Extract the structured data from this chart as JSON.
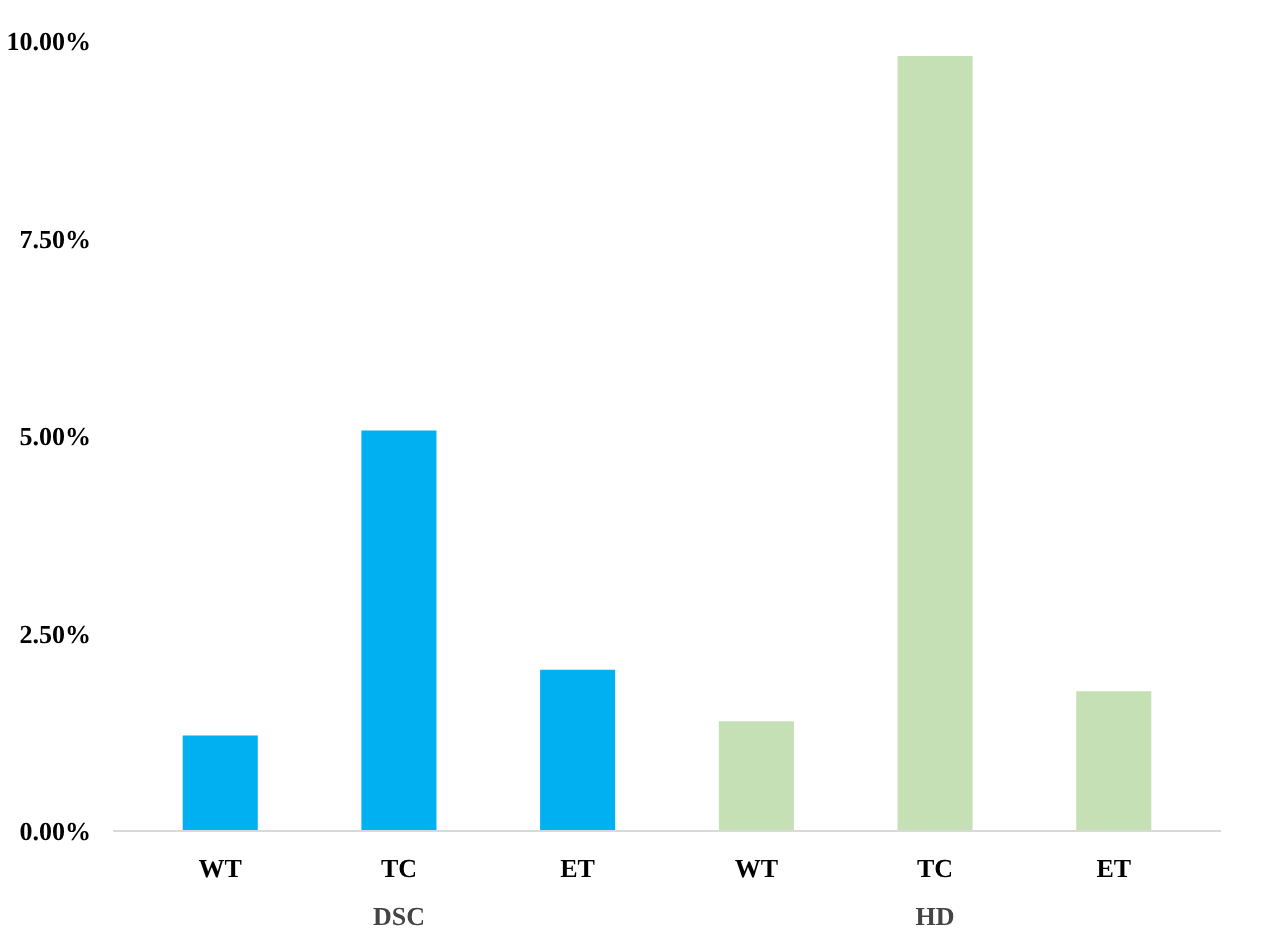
{
  "chart_data": {
    "type": "bar",
    "categories": [
      "WT",
      "TC",
      "ET",
      "WT",
      "TC",
      "ET"
    ],
    "series": [
      {
        "name": "DSC",
        "color": "#00b0f0",
        "values": [
          1.21,
          5.07,
          2.04,
          null,
          null,
          null
        ]
      },
      {
        "name": "HD",
        "color": "#c5e0b4",
        "values": [
          null,
          null,
          null,
          1.39,
          9.81,
          1.77
        ]
      }
    ],
    "ylim": [
      0,
      10
    ],
    "yticks": [
      {
        "value": 0,
        "label": "0.00%"
      },
      {
        "value": 2.5,
        "label": "2.50%"
      },
      {
        "value": 5,
        "label": "5.00%"
      },
      {
        "value": 7.5,
        "label": "7.50%"
      },
      {
        "value": 10,
        "label": "10.00%"
      }
    ],
    "grid": false,
    "legend": false
  }
}
